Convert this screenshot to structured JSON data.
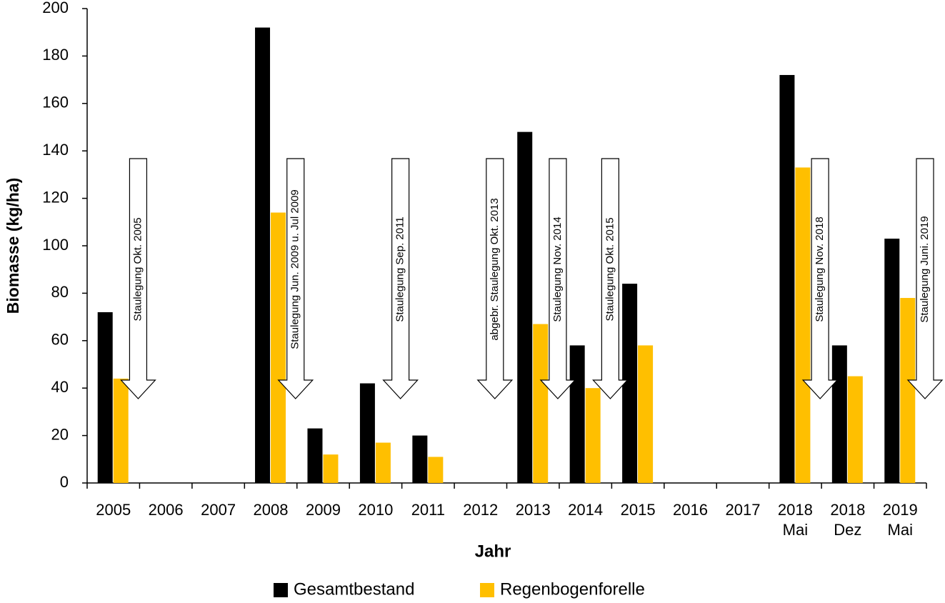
{
  "chart_data": {
    "type": "bar",
    "x_label": "Jahr",
    "y_label": "Biomasse (kg/ha)",
    "categories": [
      "2005",
      "2006",
      "2007",
      "2008",
      "2009",
      "2010",
      "2011",
      "2012",
      "2013",
      "2014",
      "2015",
      "2016",
      "2017",
      "2018\nMai",
      "2018\nDez",
      "2019\nMai"
    ],
    "series": [
      {
        "name": "Gesamtbestand",
        "color": "#000000",
        "values": [
          72,
          null,
          null,
          192,
          23,
          42,
          20,
          null,
          148,
          58,
          84,
          null,
          null,
          172,
          58,
          103
        ]
      },
      {
        "name": "Regenbogenforelle",
        "color": "#ffbf00",
        "values": [
          44,
          null,
          null,
          114,
          12,
          17,
          11,
          null,
          67,
          40,
          58,
          null,
          null,
          133,
          45,
          78
        ]
      }
    ],
    "ylim": [
      0,
      200
    ],
    "yticks": [
      0,
      20,
      40,
      60,
      80,
      100,
      120,
      140,
      160,
      180,
      200
    ],
    "annotations": [
      "Staulegung Okt. 2005",
      "Staulegung Jun. 2009 u. Jul 2009",
      "Staulegung Sep. 2011",
      "abgebr. Staulegung Okt. 2013",
      "Staulegung Nov. 2014",
      "Staulegung Okt. 2015",
      "Staulegung Nov. 2018",
      "Staulegung Juni. 2019"
    ],
    "legend": "bottom"
  }
}
